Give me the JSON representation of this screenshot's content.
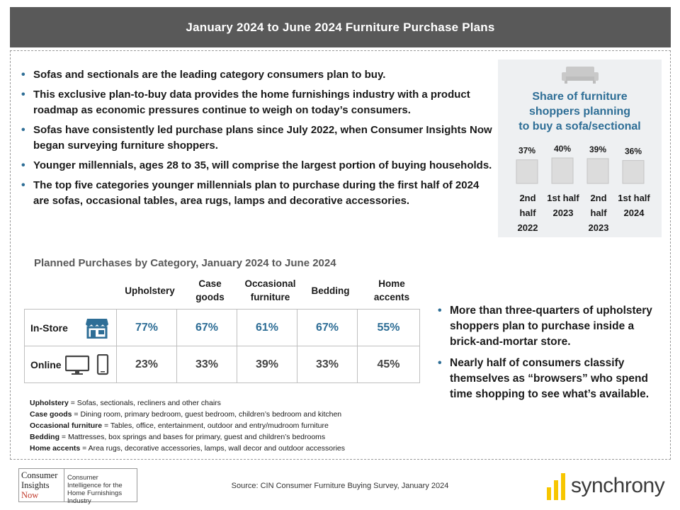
{
  "header": {
    "title": "January  2024 to June 2024 Furniture Purchase  Plans"
  },
  "top_bullets": [
    "Sofas and sectionals are the leading category consumers plan to buy.",
    "This exclusive plan-to-buy data provides the home furnishings industry with a product roadmap as economic pressures continue to weigh on today’s consumers.",
    "Sofas have consistently led purchase plans since July 2022, when Consumer Insights Now began surveying furniture shoppers.",
    "Younger millennials, ages 28 to 35, will comprise the largest portion of buying households.",
    "The top five categories younger millennials plan to purchase during the first half of 2024 are sofas, occasional tables, area rugs, lamps and decorative accessories."
  ],
  "panel": {
    "icon": "sofa-icon",
    "title_lines": [
      "Share of furniture",
      "shoppers planning",
      "to buy a sofa/sectional"
    ]
  },
  "chart_data": {
    "type": "bar",
    "title": "Share of furniture shoppers planning to buy a sofa/sectional",
    "categories": [
      [
        "2nd",
        "half",
        "2022"
      ],
      [
        "1st half",
        "2023"
      ],
      [
        "2nd",
        "half",
        "2023"
      ],
      [
        "1st half",
        "2024"
      ]
    ],
    "values": [
      37,
      40,
      39,
      36
    ],
    "value_labels": [
      "37%",
      "40%",
      "39%",
      "36%"
    ],
    "bar_color": "#dcdcdc",
    "ylim": [
      0,
      100
    ]
  },
  "table": {
    "title": "Planned Purchases by Category, January 2024 to June 2024",
    "columns": [
      [
        "Upholstery"
      ],
      [
        "Case",
        "goods"
      ],
      [
        "Occasional",
        "furniture"
      ],
      [
        "Bedding"
      ],
      [
        "Home",
        "accents"
      ]
    ],
    "rows": [
      {
        "label": "In-Store",
        "icon": "storefront-icon",
        "values": [
          "77%",
          "67%",
          "61%",
          "67%",
          "55%"
        ]
      },
      {
        "label": "Online",
        "icon": "devices-icon",
        "values": [
          "23%",
          "33%",
          "39%",
          "33%",
          "45%"
        ]
      }
    ],
    "accent_color": "#2e6e96"
  },
  "definitions": [
    {
      "term": "Upholstery",
      "text": " = Sofas, sectionals, recliners and other chairs"
    },
    {
      "term": "Case goods",
      "text": " = Dining room, primary bedroom, guest bedroom, children’s bedroom and kitchen"
    },
    {
      "term": "Occasional  furniture",
      "text": " = Tables, office, entertainment,  outdoor and entry/mudroom  furniture"
    },
    {
      "term": "Bedding",
      "text": " = Mattresses, box springs and bases for primary, guest and children’s bedrooms"
    },
    {
      "term": "Home accents",
      "text": " = Area rugs, decorative accessories, lamps, wall decor and outdoor accessories"
    }
  ],
  "right_bullets": [
    "More than three-quarters of upholstery shoppers plan to purchase inside a brick-and-mortar store.",
    "Nearly half of consumers classify themselves as “browsers” who spend time shopping to see what’s available."
  ],
  "footer": {
    "cin_logo_words": [
      "Consumer",
      "Insights",
      "Now"
    ],
    "cin_tagline": "Consumer Intelligence for the Home Furnishings Industry",
    "source": "Source:  CIN Consumer Furniture Buying Survey, January 2024",
    "synchrony_word": "synchrony",
    "synchrony_color": "#f7c600"
  }
}
